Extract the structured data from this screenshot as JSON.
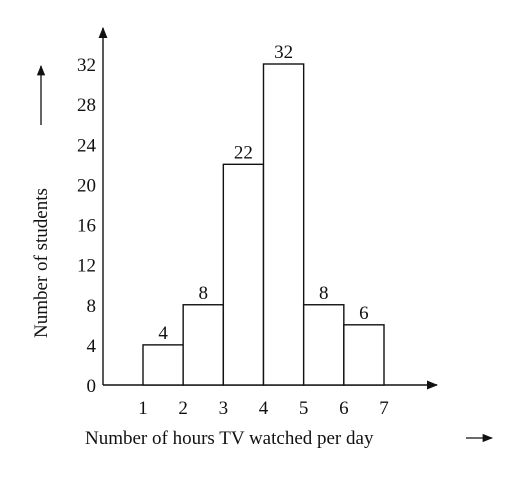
{
  "chart_data": {
    "type": "bar",
    "categories": [
      "1-2",
      "2-3",
      "3-4",
      "4-5",
      "5-6",
      "6-7"
    ],
    "x_ticks": [
      "1",
      "2",
      "3",
      "4",
      "5",
      "6",
      "7"
    ],
    "x_edges": [
      1,
      2,
      3,
      4,
      5,
      6,
      7
    ],
    "values": [
      4,
      8,
      22,
      32,
      8,
      6
    ],
    "value_labels": [
      "4",
      "8",
      "22",
      "32",
      "8",
      "6"
    ],
    "y_ticks": [
      "0",
      "4",
      "8",
      "12",
      "16",
      "20",
      "24",
      "28",
      "32"
    ],
    "y_tick_values": [
      0,
      4,
      8,
      12,
      16,
      20,
      24,
      28,
      32
    ],
    "xlabel": "Number of hours TV watched per day",
    "ylabel": "Number of students",
    "ylim": [
      0,
      32
    ],
    "grid": false,
    "colors": {
      "bar_fill": "#ffffff",
      "stroke": "#111111"
    }
  }
}
